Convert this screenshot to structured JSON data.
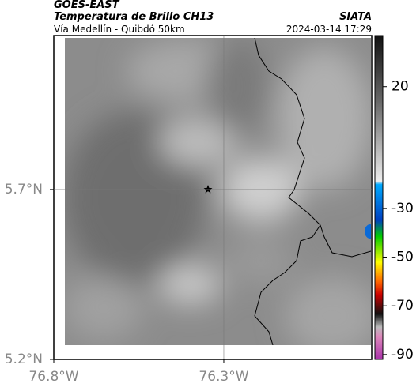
{
  "header": {
    "satellite": "GOES-EAST",
    "product": "Temperatura de Brillo CH13",
    "region": "Vía Medellín - Quibdó 50km",
    "source": "SIATA",
    "datetime": "2024-03-14 17:29"
  },
  "map": {
    "xlim": [
      -76.8,
      -75.865
    ],
    "ylim": [
      5.2,
      6.153
    ],
    "xticks": [
      {
        "value": -76.8,
        "label": "76.8°W"
      },
      {
        "value": -76.3,
        "label": "76.3°W"
      }
    ],
    "yticks": [
      {
        "value": 5.2,
        "label": "5.2°N"
      },
      {
        "value": 5.7,
        "label": "5.7°N"
      }
    ]
  },
  "colorbar": {
    "lim": [
      41,
      -92
    ],
    "ticks": [
      20,
      -30,
      -50,
      -70,
      -90
    ]
  }
}
